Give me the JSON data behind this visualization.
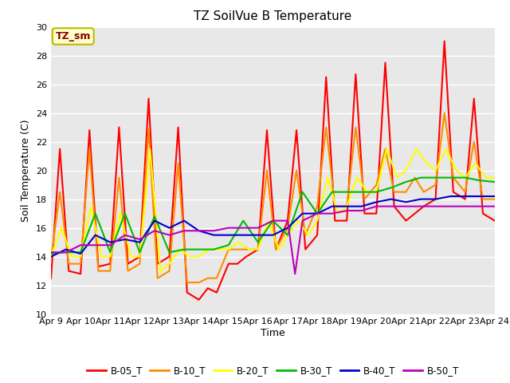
{
  "title": "TZ SoilVue B Temperature",
  "ylabel": "Soil Temperature (C)",
  "xlabel": "Time",
  "ylim": [
    10,
    30
  ],
  "plot_bg_color": "#e8e8e8",
  "annotation_text": "TZ_sm",
  "annotation_bg": "#ffffcc",
  "annotation_border": "#bbbb00",
  "annotation_text_color": "#8b0000",
  "series_colors": {
    "B-05_T": "#ff0000",
    "B-10_T": "#ff8c00",
    "B-20_T": "#ffff00",
    "B-30_T": "#00bb00",
    "B-40_T": "#0000cc",
    "B-50_T": "#bb00bb"
  },
  "x_tick_labels": [
    "Apr 9",
    "Apr 10",
    "Apr 11",
    "Apr 12",
    "Apr 13",
    "Apr 14",
    "Apr 15",
    "Apr 16",
    "Apr 17",
    "Apr 18",
    "Apr 19",
    "Apr 20",
    "Apr 21",
    "Apr 22",
    "Apr 23",
    "Apr 24"
  ],
  "y_ticks": [
    10,
    12,
    14,
    16,
    18,
    20,
    22,
    24,
    26,
    28,
    30
  ],
  "B05_x": [
    0.0,
    0.3,
    0.6,
    1.0,
    1.3,
    1.6,
    2.0,
    2.3,
    2.6,
    3.0,
    3.3,
    3.6,
    4.0,
    4.3,
    4.6,
    5.0,
    5.3,
    5.6,
    6.0,
    6.3,
    6.6,
    7.0,
    7.3,
    7.6,
    8.0,
    8.3,
    8.6,
    9.0,
    9.3,
    9.6,
    10.0,
    10.3,
    10.6,
    11.0,
    11.3,
    11.6,
    12.0,
    12.3,
    12.6,
    13.0,
    13.3,
    13.6,
    14.0,
    14.3,
    14.6,
    15.0
  ],
  "B05_y": [
    12.5,
    21.5,
    13.0,
    12.8,
    22.8,
    13.3,
    13.5,
    23.0,
    13.5,
    14.0,
    25.0,
    13.5,
    14.0,
    23.0,
    11.5,
    11.0,
    11.8,
    11.5,
    13.5,
    13.5,
    14.0,
    14.5,
    22.8,
    14.5,
    16.5,
    22.8,
    14.5,
    15.5,
    26.5,
    16.5,
    16.5,
    26.7,
    17.0,
    17.0,
    27.5,
    17.5,
    16.5,
    17.0,
    17.5,
    18.0,
    29.0,
    18.5,
    18.0,
    25.0,
    17.0,
    16.5
  ],
  "B10_x": [
    0.0,
    0.3,
    0.6,
    1.0,
    1.3,
    1.6,
    2.0,
    2.3,
    2.6,
    3.0,
    3.3,
    3.6,
    4.0,
    4.3,
    4.6,
    5.0,
    5.3,
    5.6,
    6.0,
    6.3,
    6.6,
    7.0,
    7.3,
    7.6,
    8.0,
    8.3,
    8.6,
    9.0,
    9.3,
    9.6,
    10.0,
    10.3,
    10.6,
    11.0,
    11.3,
    11.6,
    12.0,
    12.3,
    12.6,
    13.0,
    13.3,
    13.6,
    14.0,
    14.3,
    14.6,
    15.0
  ],
  "B10_y": [
    13.8,
    18.5,
    13.5,
    13.5,
    21.5,
    13.0,
    13.0,
    19.5,
    13.0,
    13.5,
    22.9,
    12.5,
    13.0,
    20.5,
    12.2,
    12.2,
    12.5,
    12.5,
    14.5,
    14.5,
    14.5,
    14.5,
    20.0,
    14.5,
    16.0,
    20.0,
    15.5,
    17.5,
    23.0,
    17.5,
    17.5,
    23.0,
    18.0,
    19.0,
    21.5,
    18.5,
    18.5,
    19.5,
    18.5,
    19.0,
    24.0,
    19.5,
    18.5,
    22.0,
    18.0,
    18.0
  ],
  "B20_x": [
    0.0,
    0.35,
    0.7,
    1.0,
    1.35,
    1.7,
    2.0,
    2.35,
    2.7,
    3.0,
    3.35,
    3.7,
    4.0,
    4.35,
    4.7,
    5.0,
    5.35,
    5.7,
    6.0,
    6.35,
    6.7,
    7.0,
    7.35,
    7.7,
    8.0,
    8.35,
    8.7,
    9.0,
    9.35,
    9.7,
    10.0,
    10.35,
    10.7,
    11.0,
    11.35,
    11.7,
    12.0,
    12.35,
    12.7,
    13.0,
    13.35,
    13.7,
    14.0,
    14.35,
    14.7,
    15.0
  ],
  "B20_y": [
    14.0,
    16.0,
    14.0,
    14.0,
    17.5,
    14.0,
    14.0,
    17.0,
    14.0,
    14.0,
    21.5,
    13.0,
    13.5,
    14.5,
    14.0,
    14.0,
    14.5,
    14.5,
    14.5,
    15.0,
    14.5,
    14.5,
    16.5,
    14.5,
    15.5,
    16.5,
    15.5,
    16.5,
    19.5,
    17.0,
    17.5,
    19.5,
    18.5,
    18.5,
    21.5,
    19.5,
    20.0,
    21.5,
    20.5,
    20.0,
    21.5,
    20.0,
    19.5,
    20.5,
    19.5,
    19.5
  ],
  "B30_x": [
    0.0,
    0.5,
    1.0,
    1.5,
    2.0,
    2.5,
    3.0,
    3.5,
    4.0,
    4.5,
    5.0,
    5.5,
    6.0,
    6.5,
    7.0,
    7.5,
    8.0,
    8.5,
    9.0,
    9.5,
    10.0,
    10.5,
    11.0,
    11.5,
    12.0,
    12.5,
    13.0,
    13.5,
    14.0,
    14.5,
    15.0
  ],
  "B30_y": [
    14.2,
    14.3,
    14.3,
    17.0,
    14.3,
    17.0,
    14.3,
    16.8,
    14.3,
    14.5,
    14.5,
    14.5,
    14.8,
    16.5,
    15.0,
    16.5,
    15.5,
    18.5,
    17.0,
    18.5,
    18.5,
    18.5,
    18.5,
    18.8,
    19.2,
    19.5,
    19.5,
    19.5,
    19.5,
    19.3,
    19.2
  ],
  "B40_x": [
    0.0,
    0.5,
    1.0,
    1.5,
    2.0,
    2.5,
    3.0,
    3.5,
    4.0,
    4.5,
    5.0,
    5.5,
    6.0,
    6.5,
    7.0,
    7.5,
    8.0,
    8.5,
    9.0,
    9.5,
    10.0,
    10.5,
    11.0,
    11.5,
    12.0,
    12.5,
    13.0,
    13.5,
    14.0,
    14.5,
    15.0
  ],
  "B40_y": [
    14.0,
    14.5,
    14.2,
    15.5,
    15.0,
    15.2,
    15.0,
    16.5,
    16.0,
    16.5,
    15.8,
    15.5,
    15.5,
    15.5,
    15.5,
    15.5,
    16.0,
    17.0,
    17.0,
    17.5,
    17.5,
    17.5,
    17.8,
    18.0,
    17.8,
    18.0,
    18.0,
    18.2,
    18.2,
    18.2,
    18.2
  ],
  "B50_x": [
    0.0,
    0.5,
    1.0,
    1.5,
    2.0,
    2.5,
    3.0,
    3.5,
    4.0,
    4.5,
    5.0,
    5.5,
    6.0,
    6.5,
    7.0,
    7.5,
    8.0,
    8.25,
    8.5,
    9.0,
    9.5,
    10.0,
    10.5,
    11.0,
    11.5,
    12.0,
    12.5,
    13.0,
    13.5,
    14.0,
    14.5,
    15.0
  ],
  "B50_y": [
    14.3,
    14.3,
    14.8,
    14.8,
    14.8,
    15.5,
    15.2,
    15.8,
    15.5,
    15.8,
    15.8,
    15.8,
    16.0,
    16.0,
    16.0,
    16.5,
    16.5,
    12.8,
    16.5,
    17.0,
    17.0,
    17.2,
    17.2,
    17.5,
    17.5,
    17.5,
    17.5,
    17.5,
    17.5,
    17.5,
    17.5,
    17.5
  ]
}
